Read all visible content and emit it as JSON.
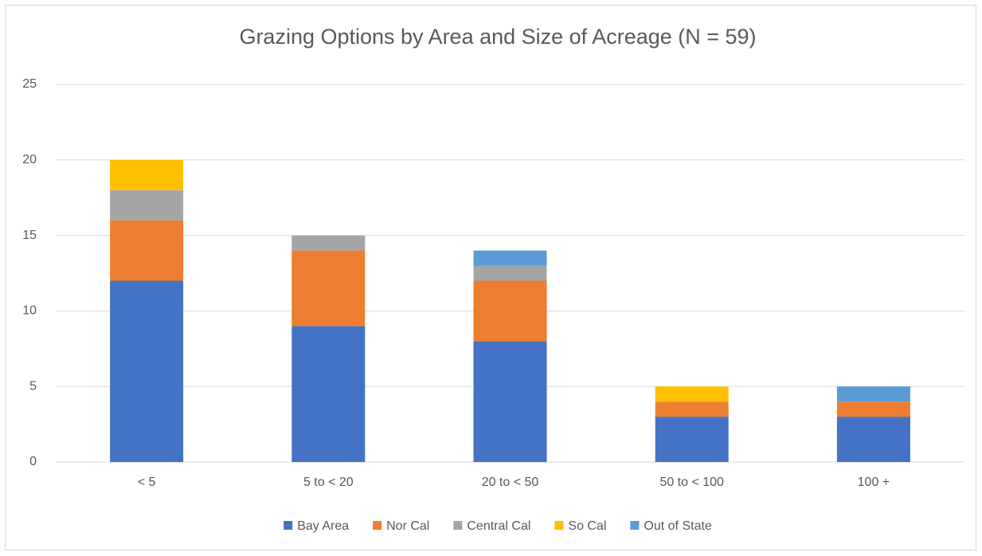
{
  "chart_data": {
    "type": "stacked_bar",
    "title": "Grazing Options by Area and Size of Acreage (N = 59)",
    "categories": [
      "< 5",
      "5 to < 20",
      "20 to < 50",
      "50 to < 100",
      "100 +"
    ],
    "series": [
      {
        "name": "Bay Area",
        "color": "#4472c4",
        "values": [
          12,
          9,
          8,
          3,
          3
        ]
      },
      {
        "name": "Nor Cal",
        "color": "#ed7d31",
        "values": [
          4,
          5,
          4,
          1,
          1
        ]
      },
      {
        "name": "Central Cal",
        "color": "#a5a5a5",
        "values": [
          2,
          1,
          1,
          0,
          0
        ]
      },
      {
        "name": "So Cal",
        "color": "#ffc000",
        "values": [
          2,
          0,
          0,
          1,
          0
        ]
      },
      {
        "name": "Out of State",
        "color": "#5b9bd5",
        "values": [
          0,
          0,
          1,
          0,
          1
        ]
      }
    ],
    "ylim": [
      0,
      25
    ],
    "yticks": [
      0,
      5,
      10,
      15,
      20,
      25
    ],
    "grid": true,
    "legend": "bottom"
  }
}
